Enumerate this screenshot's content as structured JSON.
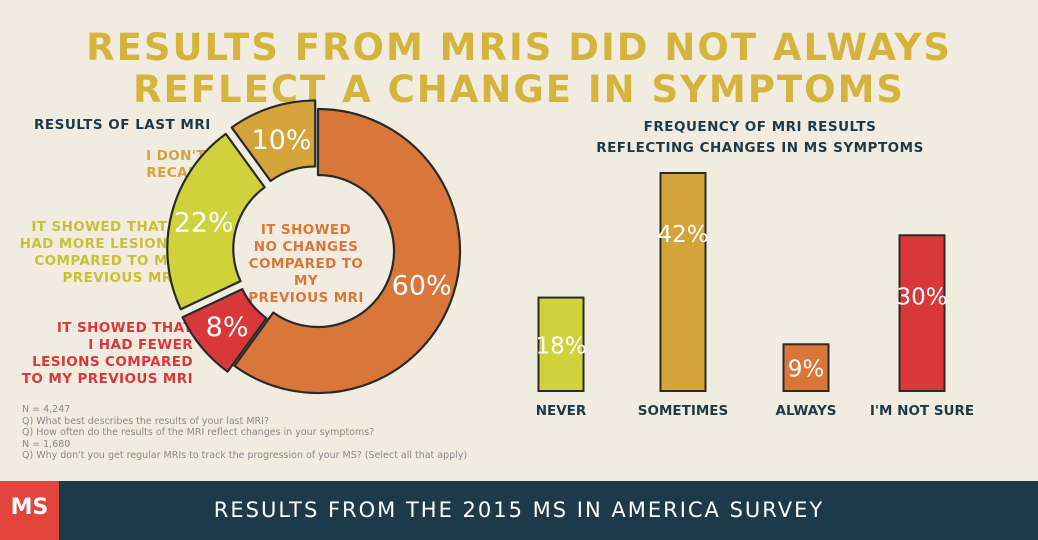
{
  "title_line1": "RESULTS FROM MRIS DID NOT ALWAYS",
  "title_line2": "REFLECT A CHANGE IN SYMPTOMS",
  "colors": {
    "orange": "#d9773a",
    "gold": "#d4a43a",
    "lime": "#cfd23a",
    "red": "#d8383a",
    "navy": "#1d3a4b"
  },
  "chart_data": [
    {
      "type": "pie",
      "title": "RESULTS OF LAST MRI",
      "slices": [
        {
          "label": "IT SHOWED NO CHANGES COMPARED TO MY PREVIOUS MRI",
          "label_lines": [
            "IT SHOWED",
            "NO CHANGES",
            "COMPARED TO MY",
            "PREVIOUS MRI"
          ],
          "value": 60,
          "value_label": "60%",
          "color": "#d9773a"
        },
        {
          "label": "IT SHOWED THAT I HAD FEWER LESIONS COMPARED TO MY PREVIOUS MRI",
          "label_lines": [
            "IT SHOWED THAT",
            "I HAD FEWER",
            "LESIONS COMPARED",
            "TO MY PREVIOUS MRI"
          ],
          "value": 8,
          "value_label": "8%",
          "color": "#d8383a"
        },
        {
          "label": "IT SHOWED THAT I HAD MORE LESIONS COMPARED TO MY PREVIOUS MRI",
          "label_lines": [
            "IT SHOWED THAT I",
            "HAD MORE LESIONS",
            "COMPARED TO MY",
            "PREVIOUS MRI"
          ],
          "value": 22,
          "value_label": "22%",
          "color": "#cfd23a"
        },
        {
          "label": "I DON'T RECALL",
          "label_lines": [
            "I DON'T",
            "RECALL"
          ],
          "value": 10,
          "value_label": "10%",
          "color": "#d4a43a"
        }
      ]
    },
    {
      "type": "bar",
      "title": "FREQUENCY OF MRI RESULTS REFLECTING CHANGES IN MS SYMPTOMS",
      "title_lines": [
        "FREQUENCY OF MRI RESULTS",
        "REFLECTING CHANGES IN MS SYMPTOMS"
      ],
      "categories": [
        "NEVER",
        "SOMETIMES",
        "ALWAYS",
        "I'M NOT SURE"
      ],
      "values": [
        18,
        42,
        9,
        30
      ],
      "value_labels": [
        "18%",
        "42%",
        "9%",
        "30%"
      ],
      "colors": [
        "#cfd23a",
        "#d4a43a",
        "#d9773a",
        "#d8383a"
      ]
    }
  ],
  "notes": [
    "N = 4,247",
    "Q) What best describes the results of your last MRI?",
    "Q) How often do the results of the MRI reflect changes in your symptoms?",
    "N = 1,680",
    "Q) Why don't you get regular MRIs to track the progression of your MS? (Select all that apply)"
  ],
  "footer": "RESULTS FROM THE 2015 MS IN AMERICA SURVEY",
  "logo": "MS"
}
